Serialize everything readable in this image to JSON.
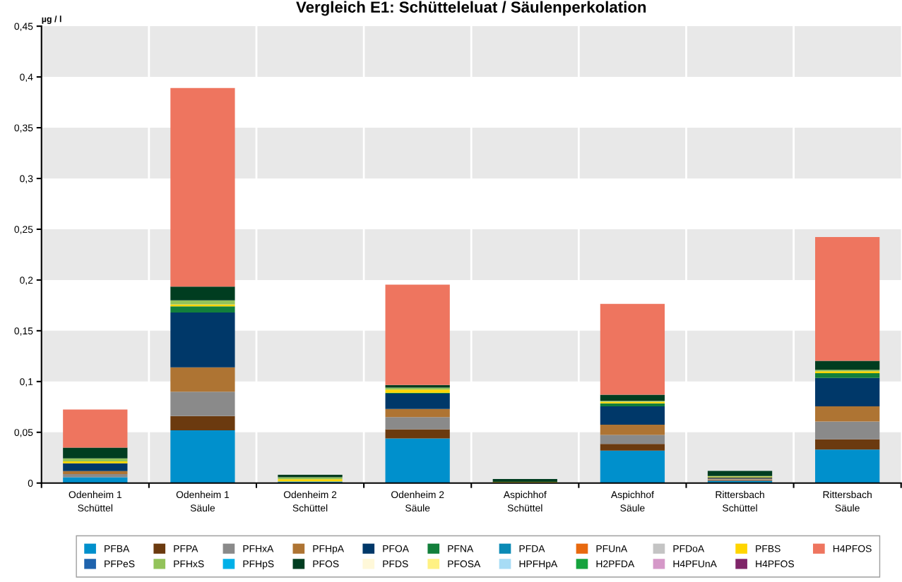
{
  "chart_data": {
    "type": "bar",
    "stacked": true,
    "title": "Vergleich E1: Schütteleluat / Säulenperkolation",
    "ylabel": "µg / l",
    "categories": [
      "Odenheim 1\nSchüttel",
      "Odenheim 1\nSäule",
      "Odenheim 2\nSchüttel",
      "Odenheim 2\nSäule",
      "Aspichhof\nSchüttel",
      "Aspichhof\nSäule",
      "Rittersbach\nSchüttel",
      "Rittersbach\nSäule"
    ],
    "ylim": [
      0,
      0.45
    ],
    "yticks": [
      0,
      {
        "value": 0.05,
        "label": "0,05"
      },
      {
        "value": 0.1,
        "label": "0,1"
      },
      {
        "value": 0.15,
        "label": "0,15"
      },
      {
        "value": 0.2,
        "label": "0,2"
      },
      {
        "value": 0.25,
        "label": "0,25"
      },
      {
        "value": 0.3,
        "label": "0,3"
      },
      {
        "value": 0.35,
        "label": "0,35"
      },
      {
        "value": 0.4,
        "label": "0,4"
      },
      {
        "value": 0.45,
        "label": "0,45"
      }
    ],
    "grid": "x",
    "legend": "bottom",
    "series": [
      {
        "name": "PFBA",
        "color": "#0090cc",
        "values": [
          0.0058,
          0.052,
          0.0016,
          0.044,
          0,
          0.032,
          0.002,
          0.033
        ]
      },
      {
        "name": "PFPA",
        "color": "#6b3a0f",
        "values": [
          null,
          0.014,
          0,
          0.009,
          0,
          0.0065,
          0.0007,
          0.01
        ]
      },
      {
        "name": "PFHxA",
        "color": "#8a8a8a",
        "values": [
          0.003,
          0.024,
          0,
          0.012,
          0,
          0.009,
          0.001,
          0.0176
        ]
      },
      {
        "name": "PFHpA",
        "color": "#ae7433",
        "values": [
          0.003,
          0.024,
          0,
          0.008,
          0,
          0.01,
          0.0008,
          0.015
        ]
      },
      {
        "name": "PFOA",
        "color": "#003869",
        "values": [
          0.0076,
          0.054,
          0,
          0.015,
          0,
          0.018,
          0.001,
          0.028
        ]
      },
      {
        "name": "PFNA",
        "color": "#127f3b",
        "values": [
          0,
          0.006,
          0,
          0.001,
          0,
          0.003,
          0,
          0.0046
        ]
      },
      {
        "name": "PFDA",
        "color": "#0a8ab5",
        "values": [
          0,
          0,
          0,
          0,
          0,
          0,
          0,
          0
        ]
      },
      {
        "name": "PFUnA",
        "color": "#e8690f",
        "values": [
          0,
          0,
          0,
          0,
          0,
          0,
          0,
          0
        ]
      },
      {
        "name": "PFDoA",
        "color": "#c4c4c4",
        "values": [
          0,
          0,
          0,
          0,
          0,
          0,
          0,
          0
        ]
      },
      {
        "name": "PFBS",
        "color": "#ffd500",
        "values": [
          0.002,
          0.002,
          0.0023,
          0.003,
          0.001,
          0.0015,
          0.0008,
          0.002
        ]
      },
      {
        "name": "PFPeS",
        "color": "#1e63ad",
        "values": [
          0,
          0,
          0,
          0,
          0,
          0,
          0,
          0
        ]
      },
      {
        "name": "PFHxS",
        "color": "#93c35a",
        "values": [
          0.003,
          0.004,
          0.0018,
          0.002,
          0,
          0.001,
          0.0007,
          0.0014
        ]
      },
      {
        "name": "PFHpS",
        "color": "#00b0e8",
        "values": [
          0,
          0,
          0,
          0,
          0,
          0,
          0,
          0
        ]
      },
      {
        "name": "PFOS",
        "color": "#003d20",
        "values": [
          0.0106,
          0.0136,
          0.0025,
          0.0025,
          0.003,
          0.006,
          0.005,
          0.0088
        ]
      },
      {
        "name": "PFDS",
        "color": "#fff8d9",
        "values": [
          0,
          0,
          0,
          0,
          0,
          0,
          0,
          0
        ]
      },
      {
        "name": "PFOSA",
        "color": "#fff183",
        "values": [
          0,
          0,
          0,
          0,
          0,
          0,
          0,
          0
        ]
      },
      {
        "name": "HPFHpA",
        "color": "#a7dcf5",
        "values": [
          0,
          0,
          0,
          0,
          0,
          0,
          0,
          0
        ]
      },
      {
        "name": "H2PFDA",
        "color": "#15a33d",
        "values": [
          0,
          0,
          0,
          0,
          0,
          0,
          0,
          0
        ]
      },
      {
        "name": "H4PFUnA",
        "color": "#d598c8",
        "values": [
          0,
          0,
          0,
          0,
          0,
          0,
          0,
          0
        ]
      },
      {
        "name": "H4PFOS",
        "color": "#7f2468",
        "values": [
          0,
          0,
          0,
          0,
          0,
          0,
          0,
          0
        ]
      },
      {
        "name": "H4PFOS",
        "color": "#ee755f",
        "values": [
          0.0375,
          0.1955,
          0,
          0.099,
          0,
          0.0895,
          0,
          0.122
        ]
      }
    ]
  }
}
